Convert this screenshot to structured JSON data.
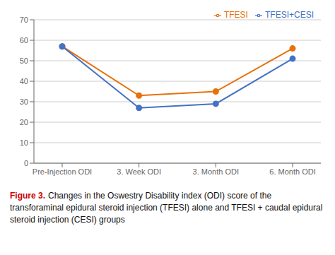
{
  "chart_data": {
    "type": "line",
    "categories": [
      "Pre-Injection ODI",
      "3. Week ODI",
      "3. Month ODI",
      "6. Month ODI"
    ],
    "series": [
      {
        "name": "TFESI",
        "color": "#E8710A",
        "values": [
          57,
          33,
          35,
          56
        ],
        "marker": "circle",
        "line_style": "solid"
      },
      {
        "name": "TFESI+CESI",
        "color": "#4472C4",
        "values": [
          57,
          27,
          29,
          51
        ],
        "marker": "circle",
        "line_style": "solid"
      }
    ],
    "ylim": [
      0,
      70
    ],
    "yticks": [
      0,
      10,
      20,
      30,
      40,
      50,
      60,
      70
    ],
    "grid": true,
    "legend": "upper right",
    "annotations": [
      {
        "text": "Figure 3.",
        "color": "#CC0000"
      },
      {
        "text": "Changes in the Oswestry Disability index (ODI) score of the transforaminal epidural steroid injection (TFESI) alone and TFESI + caudal epidural steroid injection (CESI) groups"
      }
    ]
  }
}
